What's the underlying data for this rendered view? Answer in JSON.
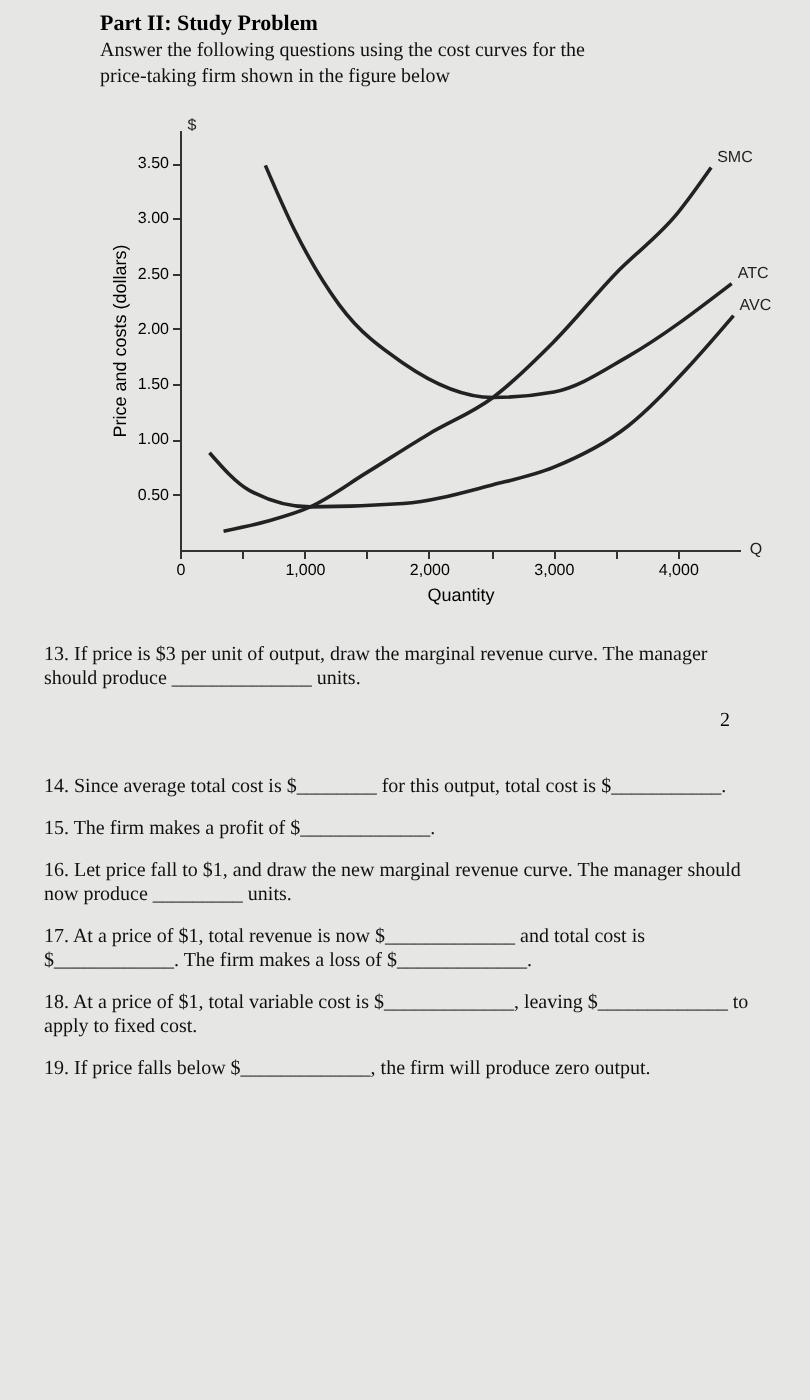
{
  "chart_data": {
    "type": "line",
    "title": "Part II: Study Problem",
    "subtitle": "Answer the following questions using the cost curves for the price-taking firm shown in the figure below",
    "xlabel": "Quantity",
    "ylabel": "Price and costs (dollars)",
    "xlim": [
      0,
      4500
    ],
    "ylim": [
      0,
      3.8
    ],
    "xticks": [
      {
        "value": 0,
        "label": "0"
      },
      {
        "value": 500,
        "label": null
      },
      {
        "value": 1000,
        "label": "1,000"
      },
      {
        "value": 1500,
        "label": null
      },
      {
        "value": 2000,
        "label": "2,000"
      },
      {
        "value": 2500,
        "label": null
      },
      {
        "value": 3000,
        "label": "3,000"
      },
      {
        "value": 3500,
        "label": null
      },
      {
        "value": 4000,
        "label": "4,000"
      }
    ],
    "yticks": [
      {
        "value": 0.5,
        "label": "0.50"
      },
      {
        "value": 1,
        "label": "1.00"
      },
      {
        "value": 1.5,
        "label": "1.50"
      },
      {
        "value": 2,
        "label": "2.00"
      },
      {
        "value": 2.5,
        "label": "2.50"
      },
      {
        "value": 3,
        "label": "3.00"
      },
      {
        "value": 3.5,
        "label": "3.50"
      }
    ],
    "grid": false,
    "legend": false,
    "marker": "none",
    "line_style": "solid",
    "series": [
      {
        "name": "SMC",
        "color": "#222222",
        "x": [
          350,
          700,
          1046,
          1500,
          2000,
          2515,
          3000,
          3500,
          4000,
          4268
        ],
        "values": [
          0.17,
          0.26,
          0.39,
          0.7,
          1.05,
          1.38,
          1.88,
          2.5,
          3.05,
          3.46
        ]
      },
      {
        "name": "ATC",
        "color": "#222222",
        "x": [
          686,
          918,
          1278,
          1794,
          2515,
          3005,
          3598,
          4433
        ],
        "values": [
          3.48,
          2.9,
          2.22,
          1.69,
          1.38,
          1.43,
          1.75,
          2.41
        ]
      },
      {
        "name": "AVC",
        "color": "#222222",
        "x": [
          237,
          557,
          1046,
          1794,
          2515,
          3005,
          3598,
          4113,
          4448
        ],
        "values": [
          0.88,
          0.54,
          0.39,
          0.42,
          0.59,
          0.75,
          1.12,
          1.69,
          2.12
        ]
      }
    ],
    "annotations": [
      "$",
      "Q",
      "13. If price is $3 per unit of output, draw the marginal revenue curve. The manager should produce ______________ units.",
      "2",
      "14. Since average total cost is $________ for this output, total cost is $___________.",
      "15. The firm makes a profit of $_____________.",
      "16. Let price fall to $1, and draw the new marginal revenue curve. The manager should now produce _________ units.",
      "17. At a price of $1, total revenue is now $_____________ and total cost is $____________. The firm makes a loss of $_____________.",
      "18. At a price of $1, total variable cost is $_____________, leaving $_____________ to apply to fixed cost.",
      "19. If price falls below $_____________, the firm will produce zero output."
    ]
  }
}
